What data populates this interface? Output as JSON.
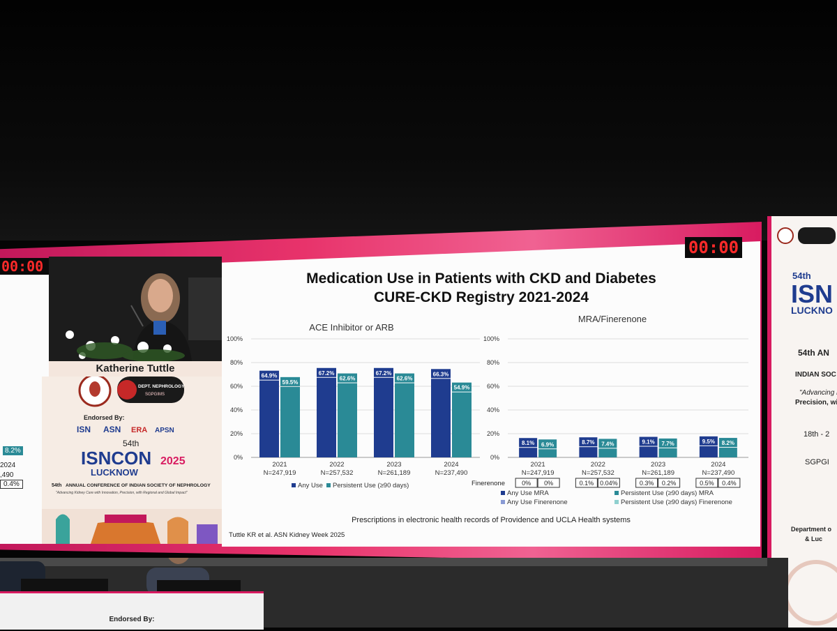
{
  "timers": {
    "left": "00:00",
    "slide": "00:00"
  },
  "speaker": {
    "name": "Katherine Tuttle"
  },
  "left_panel": {
    "val1": "8.2%",
    "val2": "2024",
    "val3": ",490",
    "val4": "0.4%"
  },
  "conference": {
    "endorsed_by": "Endorsed By:",
    "logos": [
      "ISN",
      "ASN",
      "ERA",
      "APSN"
    ],
    "edition": "54th",
    "name": "ISNCON",
    "year": "2025",
    "city": "LUCKNOW",
    "full_title": "ANNUAL CONFERENCE OF INDIAN SOCIETY OF NEPHROLOGY",
    "ordinal": "54th",
    "tagline": "\"Advancing Kidney Care with Innovation, Precision, with Regional and Global Impact\"",
    "dept_logo": "DEPARTMENT of NEPHROLOGY SGPGIMS LUCKNOW INDIA"
  },
  "slide": {
    "title_line1": "Medication Use in Patients with CKD and Diabetes",
    "title_line2": "CURE-CKD Registry 2021-2024",
    "footnote": "Prescriptions in electronic health records of Providence and UCLA Health systems",
    "citation": "Tuttle KR et al. ASN Kidney Week 2025"
  },
  "chart_data": [
    {
      "type": "bar",
      "title": "ACE Inhibitor or ARB",
      "categories": [
        "2021",
        "2022",
        "2023",
        "2024"
      ],
      "n_labels": [
        "N=247,919",
        "N=257,532",
        "N=261,189",
        "N=237,490"
      ],
      "series": [
        {
          "name": "Any Use",
          "values": [
            64.9,
            67.2,
            67.2,
            66.3
          ],
          "labels": [
            "64.9%",
            "67.2%",
            "67.2%",
            "66.3%"
          ],
          "color": "#1f3c8f"
        },
        {
          "name": "Persistent Use (≥90 days)",
          "values": [
            59.5,
            62.6,
            62.6,
            54.9
          ],
          "labels": [
            "59.5%",
            "62.6%",
            "62.6%",
            "54.9%"
          ],
          "color": "#2a8a96"
        }
      ],
      "yticks": [
        "0%",
        "20%",
        "40%",
        "60%",
        "80%",
        "100%"
      ],
      "ylim": [
        0,
        100
      ]
    },
    {
      "type": "bar",
      "title": "MRA/Finerenone",
      "categories": [
        "2021",
        "2022",
        "2023",
        "2024"
      ],
      "n_labels": [
        "N=247,919",
        "N=257,532",
        "N=261,189",
        "N=237,490"
      ],
      "series": [
        {
          "name": "Any Use MRA",
          "values": [
            8.1,
            8.7,
            9.1,
            9.5
          ],
          "labels": [
            "8.1%",
            "8.7%",
            "9.1%",
            "9.5%"
          ],
          "color": "#1f3c8f"
        },
        {
          "name": "Persistent Use (≥90 days) MRA",
          "values": [
            6.9,
            7.4,
            7.7,
            8.2
          ],
          "labels": [
            "6.9%",
            "7.4%",
            "7.7%",
            "8.2%"
          ],
          "color": "#2a8a96"
        }
      ],
      "finerenone_label": "Finerenone",
      "finerenone": [
        [
          "0%",
          "0%"
        ],
        [
          "0.1%",
          "0.04%"
        ],
        [
          "0.3%",
          "0.2%"
        ],
        [
          "0.5%",
          "0.4%"
        ]
      ],
      "extra_legend": [
        "Any Use Finerenone",
        "Persistent Use (≥90 days) Finerenone"
      ],
      "yticks": [
        "0%",
        "20%",
        "40%",
        "60%",
        "80%",
        "100%"
      ],
      "ylim": [
        0,
        100
      ]
    }
  ],
  "right_panel": {
    "edition": "54th",
    "name": "ISN",
    "city": "LUCKNO",
    "ordinal": "54th AN",
    "society": "INDIAN SOC",
    "quote1": "\"Advancing K",
    "quote2": "Precision, with",
    "dates": "18th - 2",
    "venue": "SGPGI",
    "dept1": "Department o",
    "dept2": "& Luc"
  },
  "lectern": {
    "endorsed_by": "Endorsed By:"
  }
}
